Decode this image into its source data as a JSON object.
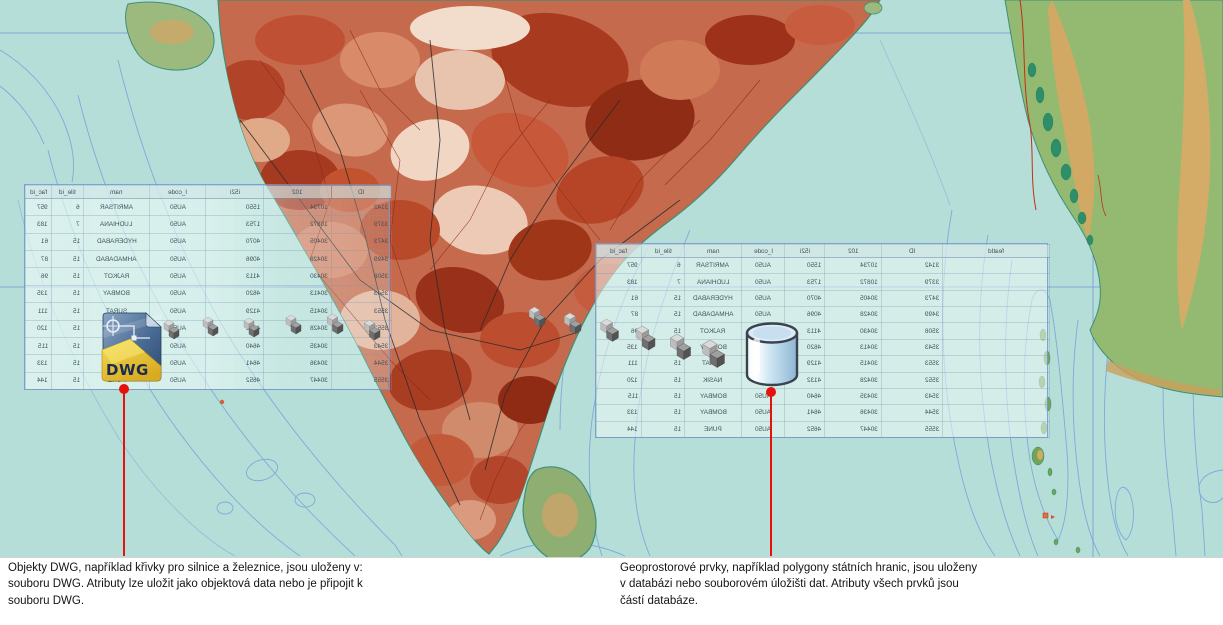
{
  "captions": {
    "left": {
      "lines": [
        "Objekty DWG, například křivky pro silnice a železnice, jsou uloženy v:",
        "souboru DWG. Atributy lze uložit jako objektová data nebo je připojit k",
        "souboru DWG."
      ]
    },
    "right": {
      "lines": [
        "Geoprostorové prvky, například polygony státních hranic, jsou uloženy",
        "v databázi nebo souborovém úložišti dat. Atributy všech prvků jsou",
        "částí databáze."
      ]
    }
  },
  "dwg_icon": {
    "label": "DWG"
  },
  "tables": {
    "headers": [
      "fac_id",
      "tile_id",
      "nam",
      "l_code",
      "i52i",
      "102",
      "ID",
      "featId"
    ],
    "rows": [
      [
        "957",
        "6",
        "AMRITSAR",
        "AU50",
        "1550",
        "10734",
        "3142",
        ""
      ],
      [
        "183",
        "7",
        "LUDHIANA",
        "AU50",
        "1753",
        "10872",
        "3379",
        ""
      ],
      [
        "61",
        "15",
        "HYDERABAD",
        "AU50",
        "4070",
        "30405",
        "3473",
        ""
      ],
      [
        "87",
        "15",
        "AHMADABAD",
        "AU50",
        "4096",
        "30428",
        "3499",
        ""
      ],
      [
        "96",
        "15",
        "RAJKOT",
        "AU50",
        "4113",
        "30430",
        "3508",
        ""
      ],
      [
        "135",
        "15",
        "BOMBAY",
        "AU50",
        "4620",
        "30413",
        "3543",
        ""
      ],
      [
        "111",
        "15",
        "SURAT",
        "AU50",
        "4129",
        "30415",
        "3553",
        ""
      ],
      [
        "120",
        "15",
        "NASIK",
        "AU50",
        "4132",
        "30428",
        "3552",
        ""
      ],
      [
        "115",
        "15",
        "BOMBAY",
        "AU50",
        "4640",
        "30435",
        "3543",
        ""
      ],
      [
        "133",
        "15",
        "BOMBAY",
        "AU50",
        "4641",
        "30436",
        "3544",
        ""
      ],
      [
        "144",
        "15",
        "PUNE",
        "AU50",
        "4652",
        "30447",
        "3555",
        ""
      ]
    ]
  },
  "colors": {
    "ocean": "#b5ded8",
    "india_base_red": "#c56a4c",
    "green_land": "#94ba72",
    "contour_blue": "#6f9ed8",
    "graticule_blue": "#7d9fd6",
    "callout_red": "#e8100c",
    "table_text": "#41525c"
  }
}
